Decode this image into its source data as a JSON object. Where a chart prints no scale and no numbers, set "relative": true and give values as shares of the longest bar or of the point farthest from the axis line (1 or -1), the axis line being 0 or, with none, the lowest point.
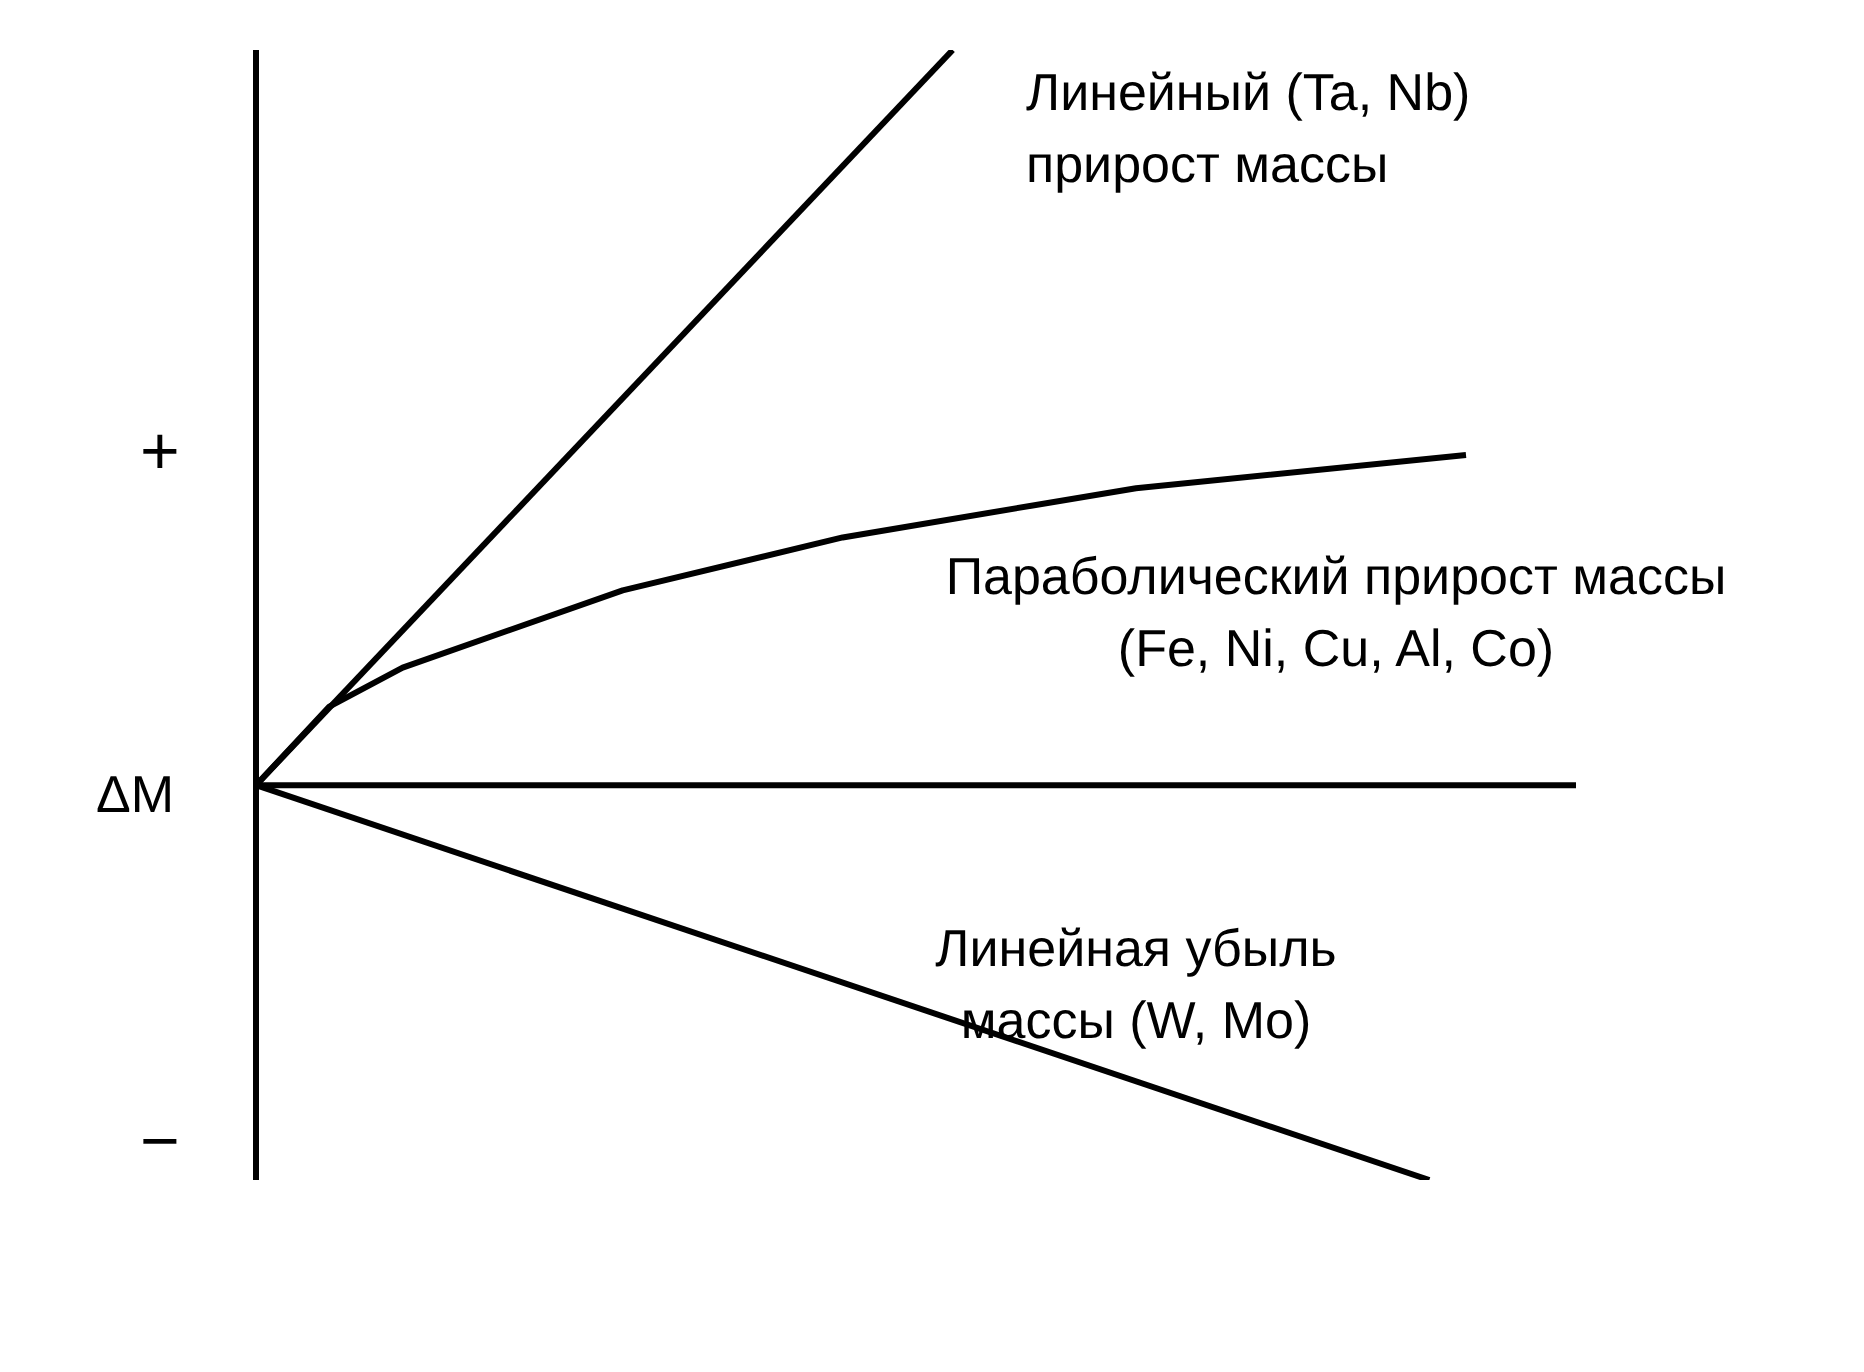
{
  "chart_data": {
    "type": "line",
    "relative": true,
    "ylabel": "ΔM",
    "annotations": [
      "+",
      "−"
    ],
    "marker": "none",
    "line_style": "solid",
    "categories": [
      null,
      null,
      null,
      null,
      null,
      null,
      null,
      null,
      null,
      null,
      null,
      null,
      null,
      null,
      null,
      null,
      null,
      null,
      null,
      null,
      null,
      null,
      null,
      null,
      null,
      null,
      null,
      null,
      null,
      null,
      null,
      null,
      null,
      null,
      null,
      null,
      null
    ],
    "series": [
      {
        "name": "Линейный (Ta, Nb) прирост массы",
        "color": "#000000",
        "values": [
          0,
          null,
          null,
          null,
          null,
          null,
          null,
          null,
          null,
          null,
          null,
          null,
          null,
          null,
          null,
          null,
          null,
          null,
          null,
          1,
          null,
          null,
          null,
          null,
          null,
          null,
          null,
          null,
          null,
          null,
          null,
          null,
          null,
          null,
          null,
          null,
          null
        ]
      },
      {
        "name": "Параболический прирост массы (Fe, Ni, Cu, Al, Co)",
        "color": "#000000",
        "values": [
          0,
          null,
          0.107,
          null,
          0.16,
          null,
          null,
          null,
          null,
          null,
          0.265,
          null,
          null,
          null,
          null,
          null,
          0.337,
          null,
          null,
          null,
          null,
          null,
          null,
          null,
          0.404,
          null,
          null,
          null,
          null,
          null,
          null,
          null,
          null,
          0.449,
          null,
          null,
          null
        ]
      },
      {
        "name": "Линейная убыль массы (W, Mo)",
        "color": "#000000",
        "values": [
          0,
          null,
          null,
          null,
          null,
          null,
          null,
          null,
          null,
          null,
          null,
          null,
          null,
          null,
          null,
          null,
          null,
          null,
          null,
          null,
          null,
          null,
          null,
          null,
          null,
          null,
          null,
          null,
          null,
          null,
          null,
          null,
          -0.537,
          null,
          null,
          null,
          null
        ]
      }
    ]
  }
}
